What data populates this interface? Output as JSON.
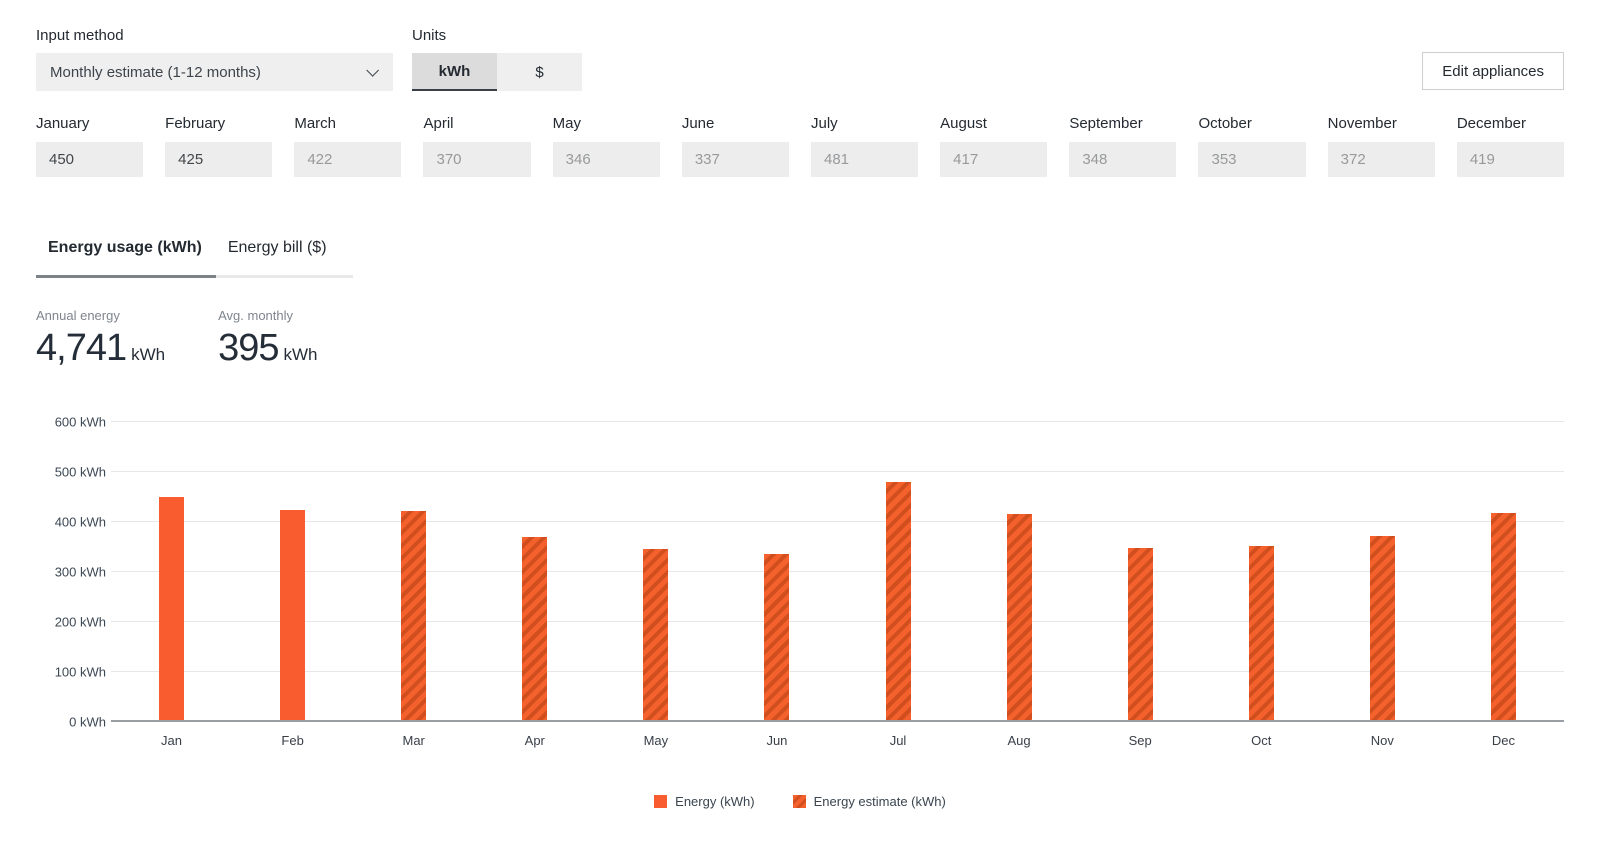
{
  "controls": {
    "input_method_label": "Input method",
    "input_method_value": "Monthly estimate (1-12 months)",
    "units_label": "Units",
    "units_options": [
      "kWh",
      "$"
    ],
    "units_selected": "kWh",
    "edit_appliances_label": "Edit appliances"
  },
  "months": [
    {
      "label": "January",
      "value": "450",
      "entered": true
    },
    {
      "label": "February",
      "value": "425",
      "entered": true
    },
    {
      "label": "March",
      "value": "422",
      "entered": false
    },
    {
      "label": "April",
      "value": "370",
      "entered": false
    },
    {
      "label": "May",
      "value": "346",
      "entered": false
    },
    {
      "label": "June",
      "value": "337",
      "entered": false
    },
    {
      "label": "July",
      "value": "481",
      "entered": false
    },
    {
      "label": "August",
      "value": "417",
      "entered": false
    },
    {
      "label": "September",
      "value": "348",
      "entered": false
    },
    {
      "label": "October",
      "value": "353",
      "entered": false
    },
    {
      "label": "November",
      "value": "372",
      "entered": false
    },
    {
      "label": "December",
      "value": "419",
      "entered": false
    }
  ],
  "tabs": [
    {
      "label": "Energy usage (kWh)",
      "active": true
    },
    {
      "label": "Energy bill ($)",
      "active": false
    }
  ],
  "stats": [
    {
      "label": "Annual energy",
      "value": "4,741",
      "unit": "kWh"
    },
    {
      "label": "Avg. monthly",
      "value": "395",
      "unit": "kWh"
    }
  ],
  "chart_data": {
    "type": "bar",
    "categories": [
      "Jan",
      "Feb",
      "Mar",
      "Apr",
      "May",
      "Jun",
      "Jul",
      "Aug",
      "Sep",
      "Oct",
      "Nov",
      "Dec"
    ],
    "series": [
      {
        "name": "Energy (kWh)",
        "pattern": "solid",
        "values": [
          450,
          425,
          null,
          null,
          null,
          null,
          null,
          null,
          null,
          null,
          null,
          null
        ]
      },
      {
        "name": "Energy estimate (kWh)",
        "pattern": "striped",
        "values": [
          null,
          null,
          422,
          370,
          346,
          337,
          481,
          417,
          348,
          353,
          372,
          419
        ]
      }
    ],
    "title": "",
    "xlabel": "",
    "ylabel": "",
    "ytick_unit": "kWh",
    "yticks": [
      0,
      100,
      200,
      300,
      400,
      500,
      600
    ],
    "ylim": [
      0,
      600
    ],
    "grid": true,
    "legend_position": "bottom",
    "colors": {
      "bar_solid": "#f95d2f",
      "stripe_light": "#f4612d",
      "stripe_dark": "#d14f1f"
    }
  }
}
